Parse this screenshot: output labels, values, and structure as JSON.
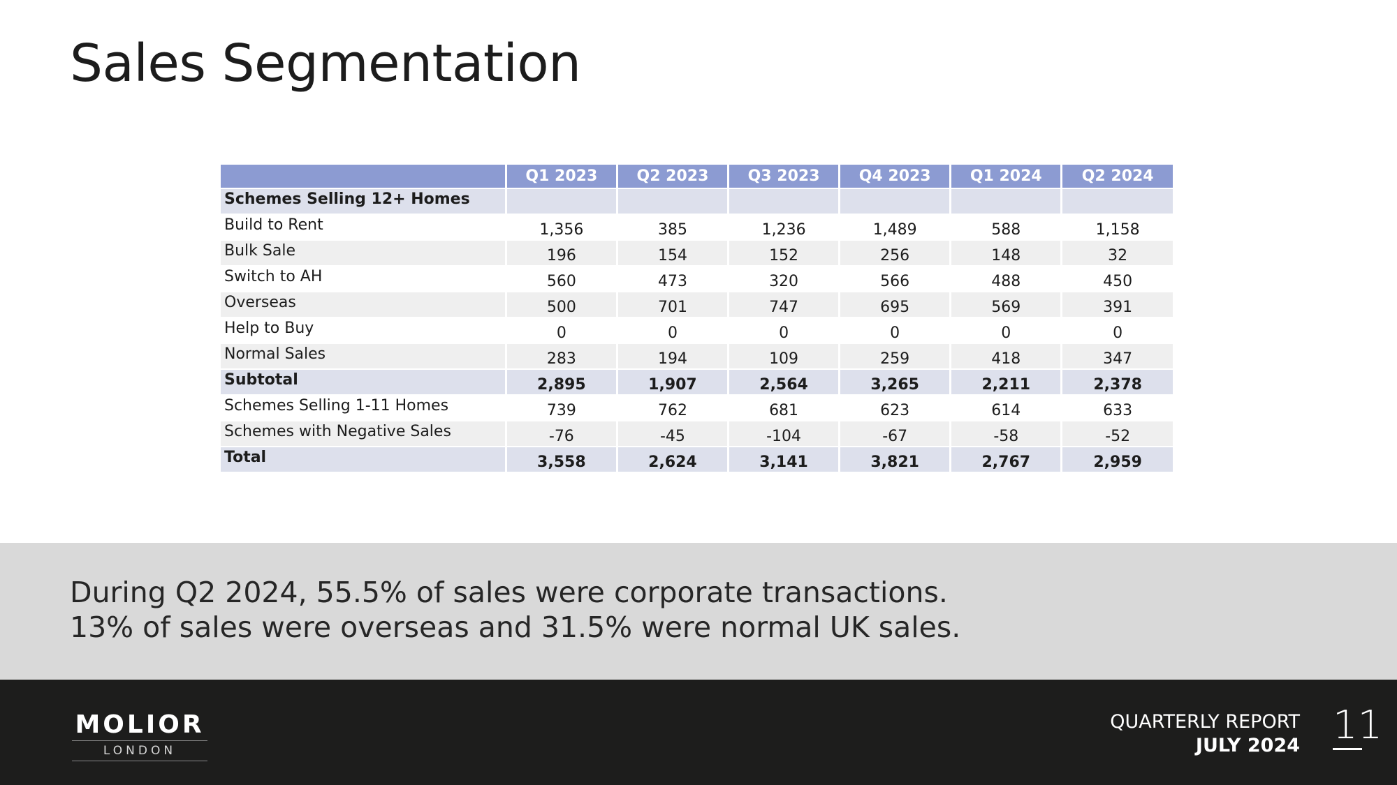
{
  "slide": {
    "title": "Sales Segmentation",
    "summary_line1": "During Q2 2024, 55.5% of sales were corporate transactions.",
    "summary_line2": "13% of sales were overseas and 31.5% were normal UK sales."
  },
  "table": {
    "columns": [
      "",
      "Q1 2023",
      "Q2 2023",
      "Q3 2023",
      "Q4 2023",
      "Q1 2024",
      "Q2 2024"
    ],
    "rows": [
      {
        "label": "Schemes Selling 12+ Homes",
        "values": [
          "",
          "",
          "",
          "",
          "",
          ""
        ]
      },
      {
        "label": "Build to Rent",
        "values": [
          "1,356",
          "385",
          "1,236",
          "1,489",
          "588",
          "1,158"
        ]
      },
      {
        "label": "Bulk Sale",
        "values": [
          "196",
          "154",
          "152",
          "256",
          "148",
          "32"
        ]
      },
      {
        "label": "Switch to AH",
        "values": [
          "560",
          "473",
          "320",
          "566",
          "488",
          "450"
        ]
      },
      {
        "label": "Overseas",
        "values": [
          "500",
          "701",
          "747",
          "695",
          "569",
          "391"
        ]
      },
      {
        "label": "Help to Buy",
        "values": [
          "0",
          "0",
          "0",
          "0",
          "0",
          "0"
        ]
      },
      {
        "label": "Normal Sales",
        "values": [
          "283",
          "194",
          "109",
          "259",
          "418",
          "347"
        ]
      },
      {
        "label": "Subtotal",
        "values": [
          "2,895",
          "1,907",
          "2,564",
          "3,265",
          "2,211",
          "2,378"
        ]
      },
      {
        "label": "Schemes Selling 1-11 Homes",
        "values": [
          "739",
          "762",
          "681",
          "623",
          "614",
          "633"
        ]
      },
      {
        "label": "Schemes with Negative Sales",
        "values": [
          "-76",
          "-45",
          "-104",
          "-67",
          "-58",
          "-52"
        ]
      },
      {
        "label": "Total",
        "values": [
          "3,558",
          "2,624",
          "3,141",
          "3,821",
          "2,767",
          "2,959"
        ]
      }
    ]
  },
  "footer": {
    "logo_main": "MOLIOR",
    "logo_sub": "LONDON",
    "report_label": "QUARTERLY REPORT",
    "report_date": "JULY 2024",
    "page_number": "11"
  },
  "colors": {
    "header": "#8c9bd2",
    "section_row": "#dde0ec",
    "alt_row": "#efefef",
    "band": "#d9d9d9",
    "footer": "#1d1d1c"
  }
}
